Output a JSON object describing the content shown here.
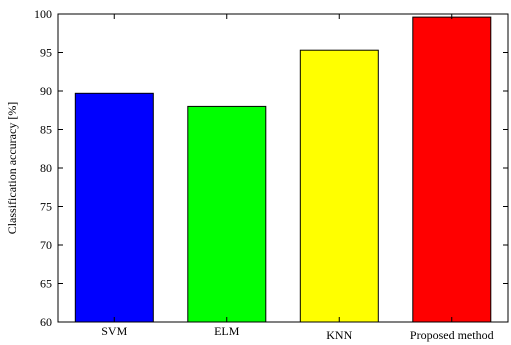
{
  "chart_data": {
    "type": "bar",
    "categories": [
      "SVM",
      "ELM",
      "KNN",
      "Proposed method"
    ],
    "values": [
      89.7,
      88.0,
      95.3,
      99.6
    ],
    "bar_colors": [
      "#0000ff",
      "#00ff00",
      "#ffff00",
      "#ff0000"
    ],
    "title": "",
    "xlabel": "",
    "ylabel": "Classification accuracy [%]",
    "ylim": [
      60,
      100
    ],
    "yticks": [
      60,
      65,
      70,
      75,
      80,
      85,
      90,
      95,
      100
    ],
    "grid": false
  }
}
